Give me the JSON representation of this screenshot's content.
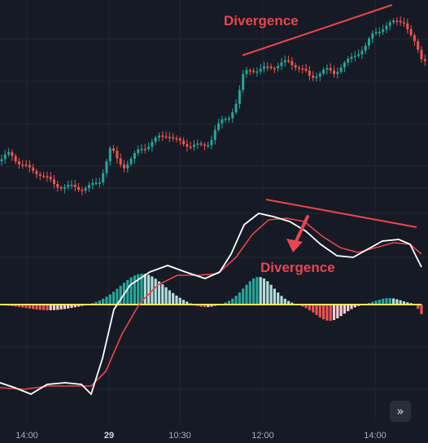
{
  "annotations": {
    "price_divergence": "Divergence",
    "macd_divergence": "Divergence"
  },
  "time_axis": {
    "labels": [
      "14:00",
      "29",
      "10:30",
      "12:00",
      "14:00"
    ],
    "emphasized": "29"
  },
  "scroll_button": {
    "icon": "double-chevron-right-icon",
    "glyph": "»"
  },
  "colors": {
    "background": "#161a25",
    "grid": "#222733",
    "bull": "#26a69a",
    "bull_light": "#b2dfdb",
    "bear": "#ef5350",
    "bear_light": "#ffcdd2",
    "macd_line": "#ffffff",
    "signal_line": "#e84552",
    "zero_line": "#f5e663",
    "annotation": "#e84552"
  }
}
